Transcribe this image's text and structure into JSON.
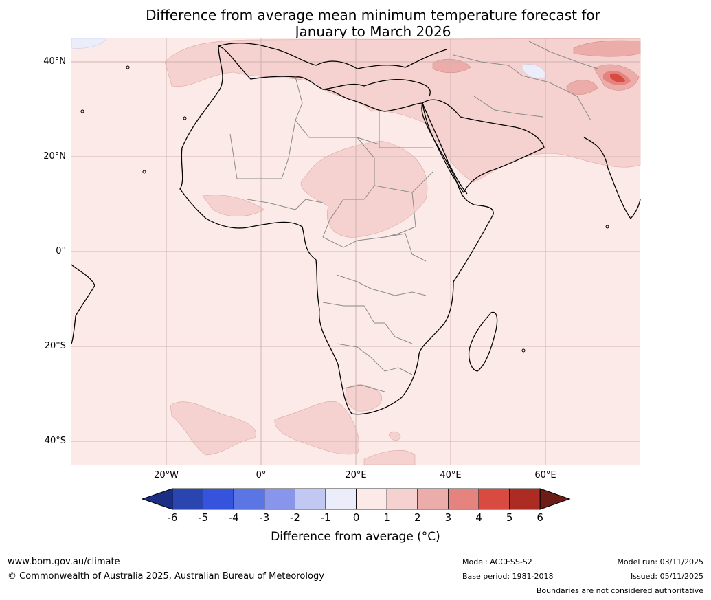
{
  "title": {
    "line1": "Difference from average mean minimum temperature forecast for",
    "line2": "January to March 2026"
  },
  "map": {
    "region": "Africa, Middle East and western Indian Ocean",
    "lat_labels": [
      "40°N",
      "20°N",
      "0°",
      "20°S",
      "40°S"
    ],
    "lon_labels": [
      "20°W",
      "0°",
      "20°E",
      "40°E",
      "60°E"
    ],
    "background_color": "#fbeae8"
  },
  "colorbar": {
    "ticks": [
      "-6",
      "-5",
      "-4",
      "-3",
      "-2",
      "-1",
      "0",
      "1",
      "2",
      "3",
      "4",
      "5",
      "6"
    ],
    "colors": [
      "#1b2e86",
      "#2a45b0",
      "#3553dc",
      "#5b75e4",
      "#8796ea",
      "#c1c8f2",
      "#ebedfb",
      "#fbeae8",
      "#f5d2cf",
      "#ecaca9",
      "#e5837e",
      "#d94a40",
      "#ac2c23",
      "#6b1d16"
    ],
    "label": "Difference from average (°C)"
  },
  "footer": {
    "website": "www.bom.gov.au/climate",
    "copyright": "© Commonwealth of Australia 2025, Australian Bureau of Meteorology",
    "model": "Model: ACCESS-S2",
    "base_period": "Base period: 1981-2018",
    "model_run": "Model run: 03/11/2025",
    "issued": "Issued: 05/11/2025",
    "disclaimer": "Boundaries are not considered authoritative"
  }
}
